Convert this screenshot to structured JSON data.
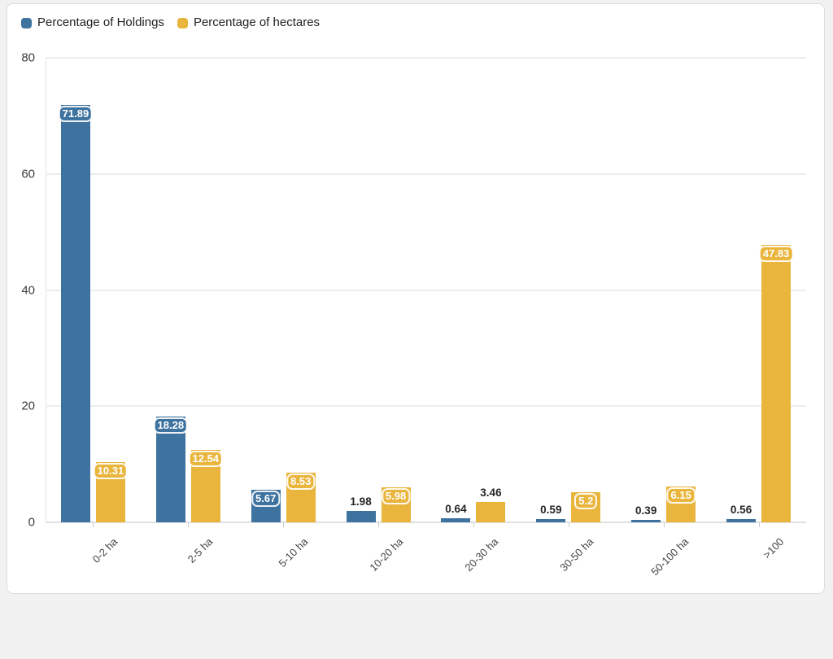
{
  "page": {
    "background_color": "#f1f1f1",
    "card_background": "#ffffff",
    "card_border_color": "#dcdcdc"
  },
  "legend": {
    "items": [
      {
        "label": "Percentage of Holdings",
        "color": "#3e729f"
      },
      {
        "label": "Percentage of hectares",
        "color": "#e9b53d"
      }
    ]
  },
  "chart_data": {
    "type": "bar",
    "title": "",
    "categories": [
      "0-2 ha",
      "2-5 ha",
      "5-10 ha",
      "10-20 ha",
      "20-30 ha",
      "30-50 ha",
      "50-100 ha",
      ">100"
    ],
    "series": [
      {
        "name": "Percentage of Holdings",
        "color": "#3e729f",
        "values": [
          71.89,
          18.28,
          5.67,
          1.98,
          0.64,
          0.59,
          0.39,
          0.56
        ]
      },
      {
        "name": "Percentage of hectares",
        "color": "#e9b53d",
        "values": [
          10.31,
          12.54,
          8.53,
          5.98,
          3.46,
          5.2,
          6.15,
          47.83
        ]
      }
    ],
    "xlabel": "",
    "ylabel": "",
    "ylim": [
      0,
      80
    ],
    "y_ticks": [
      0,
      20,
      40,
      60,
      80
    ],
    "y_tick_labels": [
      "0",
      "20",
      "40",
      "60",
      "80"
    ],
    "grid": true,
    "legend_position": "top-left",
    "value_label_inside_color": "#ffffff",
    "value_label_outside_color": "#262626"
  }
}
